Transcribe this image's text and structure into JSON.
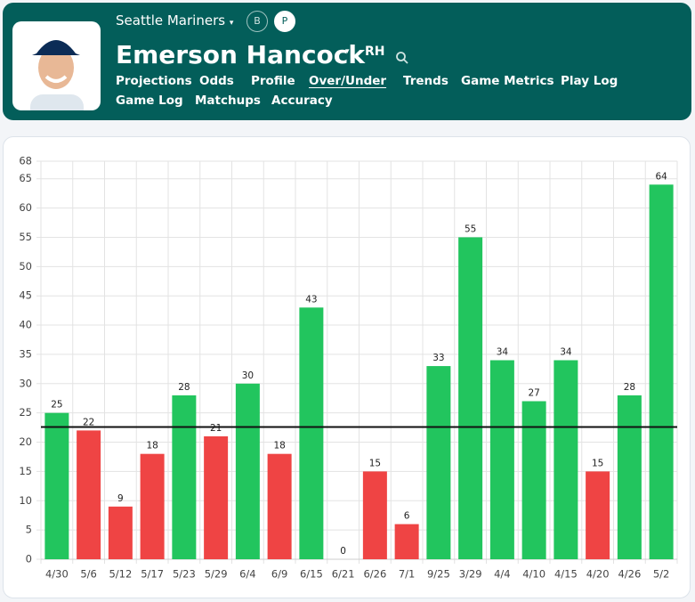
{
  "header": {
    "team": "Seattle Mariners",
    "toggles": [
      "B",
      "P"
    ],
    "active_toggle": 1,
    "player": "Emerson Hancock",
    "hand": "RH",
    "nav": [
      "Projections",
      "Odds",
      "Profile",
      "Over/Under",
      "Trends",
      "Game Metrics",
      "Play Log",
      "Game Log",
      "Matchups",
      "Accuracy"
    ],
    "active_tab": 3
  },
  "chart_data": {
    "type": "bar",
    "categories": [
      "4/30",
      "5/6",
      "5/12",
      "5/17",
      "5/23",
      "5/29",
      "6/4",
      "6/9",
      "6/15",
      "6/21",
      "6/26",
      "7/1",
      "9/25",
      "3/29",
      "4/4",
      "4/10",
      "4/15",
      "4/20",
      "4/26",
      "5/2"
    ],
    "values": [
      25,
      22,
      9,
      18,
      28,
      21,
      30,
      18,
      43,
      0,
      15,
      6,
      33,
      55,
      34,
      27,
      34,
      15,
      28,
      64
    ],
    "line": 22.6,
    "over_color": "#22c55e",
    "under_color": "#ef4444",
    "ylim": [
      0,
      68
    ],
    "yticks": [
      0,
      5,
      10,
      15,
      20,
      25,
      30,
      35,
      40,
      45,
      50,
      55,
      60,
      65,
      68
    ],
    "grid": true
  }
}
